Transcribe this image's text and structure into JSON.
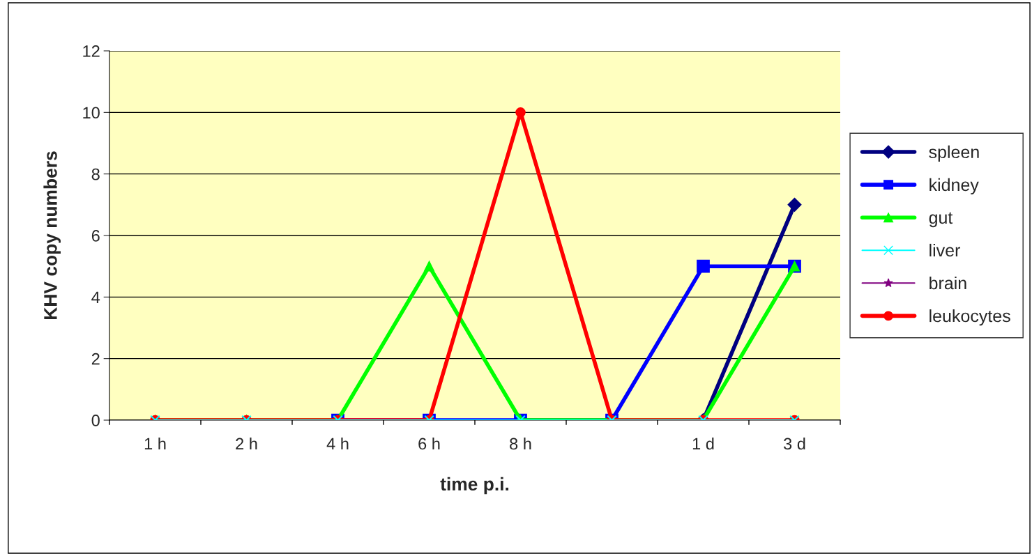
{
  "chart_data": {
    "type": "line",
    "xlabel": "time p.i.",
    "ylabel": "KHV copy numbers",
    "categories": [
      "1 h",
      "2 h",
      "4 h",
      "6 h",
      "8 h",
      null,
      "1 d",
      "3 d"
    ],
    "ylim": [
      0,
      12
    ],
    "yticks": [
      0,
      2,
      4,
      6,
      8,
      10,
      12
    ],
    "grid": "y",
    "legend": "right",
    "series": [
      {
        "name": "spleen",
        "color": "#000080",
        "marker": "diamond",
        "values": [
          null,
          null,
          null,
          null,
          null,
          null,
          0,
          7
        ]
      },
      {
        "name": "kidney",
        "color": "#0000ff",
        "marker": "square",
        "values": [
          null,
          null,
          0,
          0,
          0,
          0,
          5,
          5
        ]
      },
      {
        "name": "gut",
        "color": "#00ff00",
        "marker": "triangle",
        "values": [
          0,
          0,
          0,
          5,
          0,
          0,
          0,
          5
        ]
      },
      {
        "name": "liver",
        "color": "#00ffff",
        "marker": "cross",
        "values": [
          0,
          0,
          0,
          0,
          0,
          0,
          0,
          0
        ]
      },
      {
        "name": "brain",
        "color": "#800080",
        "marker": "star",
        "values": [
          null,
          null,
          null,
          null,
          null,
          null,
          null,
          null
        ]
      },
      {
        "name": "leukocytes",
        "color": "#ff0000",
        "marker": "circle",
        "values": [
          0,
          0,
          0,
          0,
          10,
          0,
          0,
          0
        ]
      }
    ]
  }
}
